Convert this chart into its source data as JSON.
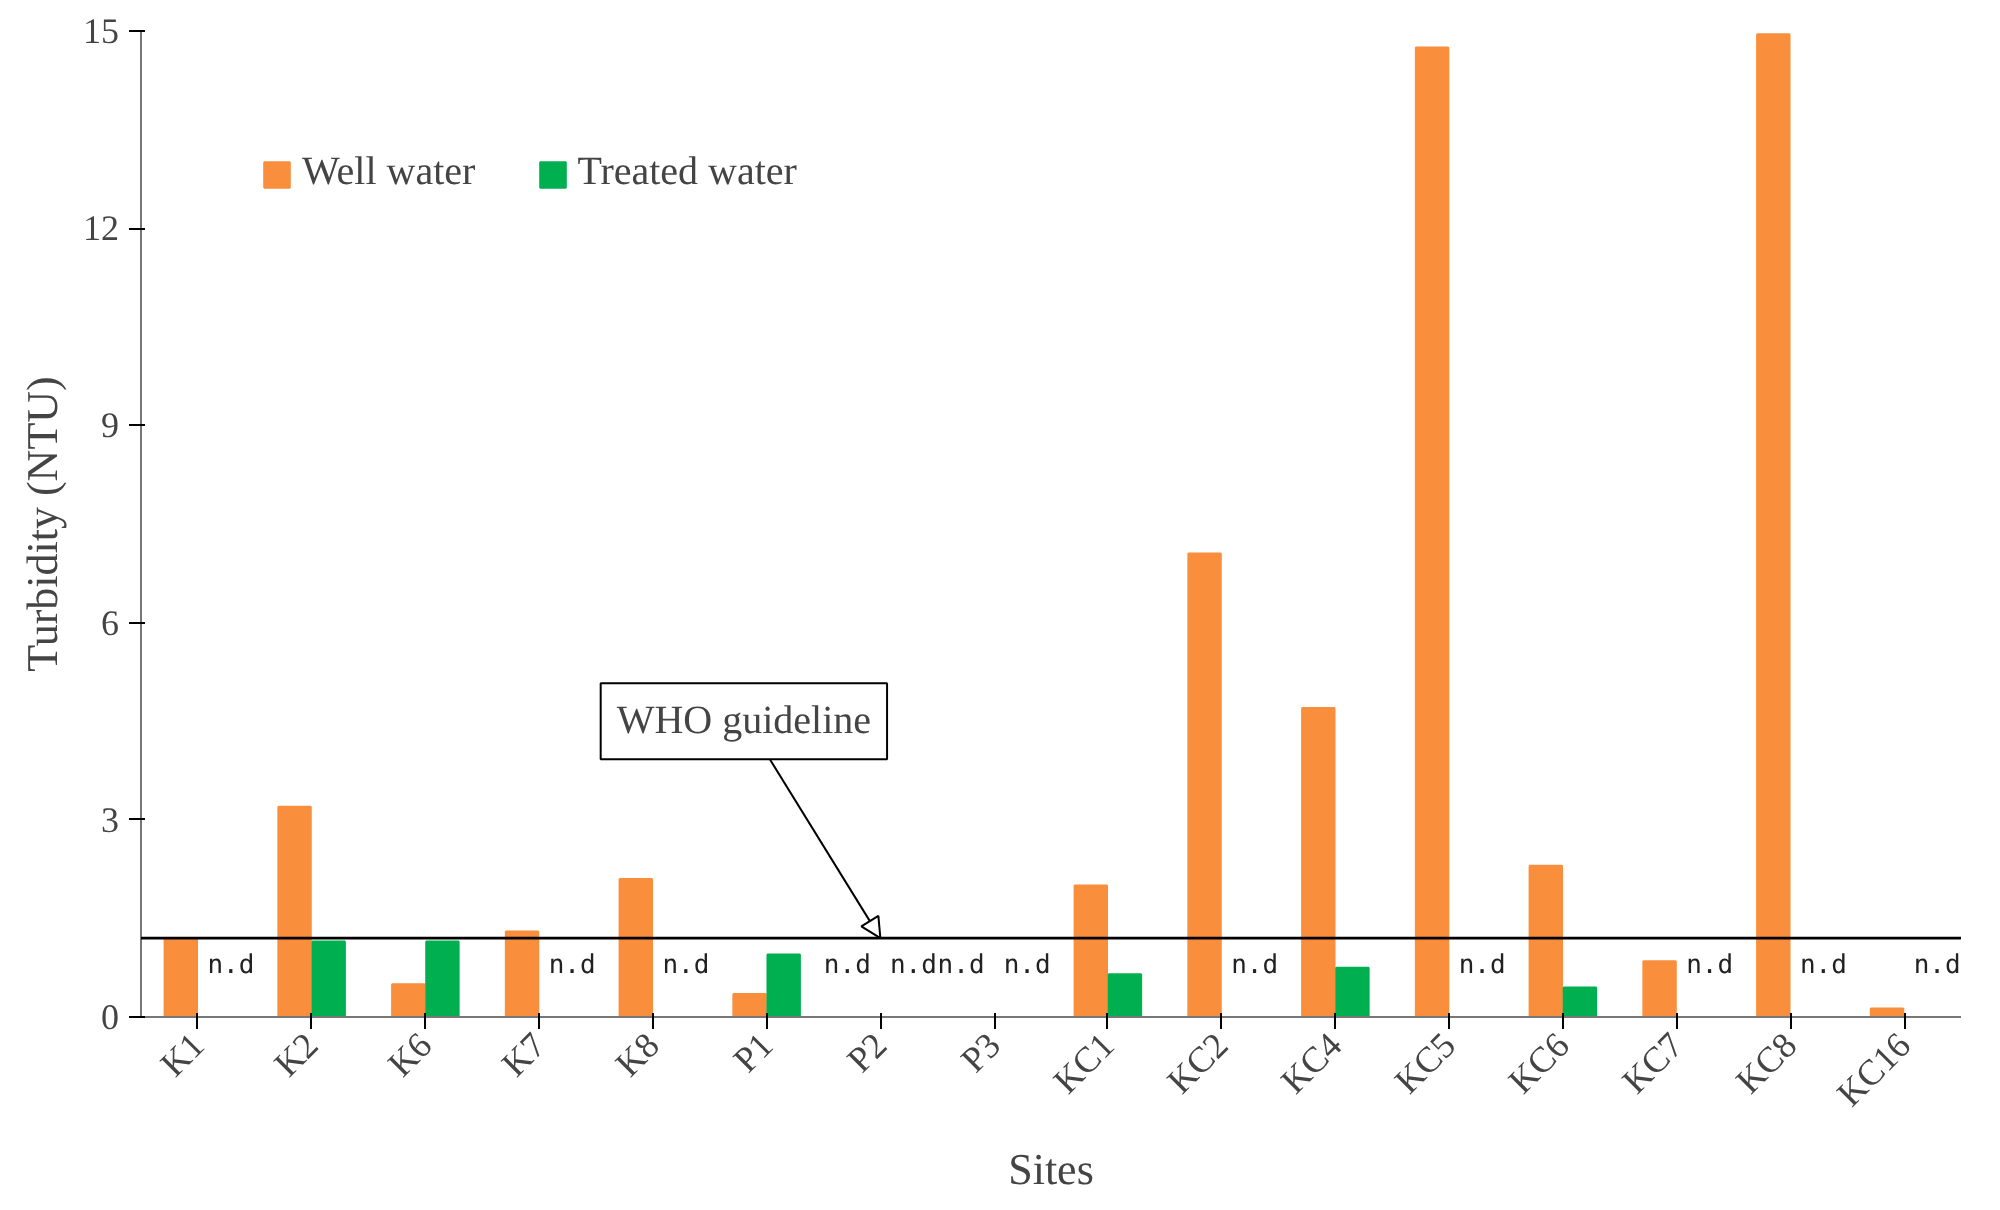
{
  "chart_data": {
    "type": "bar",
    "xlabel": "Sites",
    "ylabel": "Turbidity (NTU)",
    "categories": [
      "K1",
      "K2",
      "K6",
      "K7",
      "K8",
      "P1",
      "P2",
      "P3",
      "KC1",
      "KC2",
      "KC4",
      "KC5",
      "KC6",
      "KC7",
      "KC8",
      "KC16"
    ],
    "series": [
      {
        "name": "Well water",
        "color": "#f98e3c",
        "values": [
          1.2,
          3.2,
          0.5,
          1.3,
          2.1,
          0.35,
          0,
          0,
          2.0,
          7.05,
          4.7,
          14.75,
          2.3,
          0.85,
          14.95,
          0.13
        ],
        "value_labels": [
          null,
          null,
          null,
          null,
          null,
          null,
          "n.d",
          "n.d",
          null,
          null,
          null,
          null,
          null,
          null,
          null,
          null
        ]
      },
      {
        "name": "Treated water",
        "color": "#00b050",
        "values": [
          0,
          1.15,
          1.15,
          0,
          0,
          0.95,
          0,
          0,
          0.65,
          0,
          0.75,
          0,
          0.45,
          0,
          0,
          0
        ],
        "value_labels": [
          "n.d",
          null,
          null,
          "n.d",
          "n.d",
          null,
          "n.d",
          "n.d",
          null,
          "n.d",
          null,
          "n.d",
          null,
          "n.d",
          "n.d",
          "n.d"
        ]
      }
    ],
    "ylim": [
      0,
      15
    ],
    "yticks": [
      0,
      3,
      6,
      9,
      12,
      15
    ],
    "ref_lines": [
      {
        "axis": "y",
        "value": 1.2,
        "color": "#000000"
      }
    ],
    "annotations": [
      {
        "text": "WHO guideline",
        "x": "P2",
        "y": 1.2
      }
    ],
    "legend": "top left",
    "grid": false
  }
}
